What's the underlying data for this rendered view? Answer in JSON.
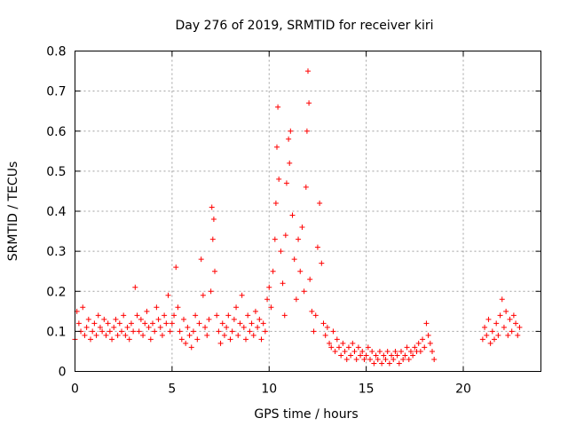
{
  "chart_data": {
    "type": "scatter",
    "title": "Day 276 of 2019, SRMTID for receiver kiri",
    "xlabel": "GPS time / hours",
    "ylabel": "SRMTID / TECUs",
    "xlim": [
      0,
      24
    ],
    "ylim": [
      0,
      0.8
    ],
    "xticks": [
      0,
      5,
      10,
      15,
      20
    ],
    "yticks": [
      0,
      0.1,
      0.2,
      0.3,
      0.4,
      0.5,
      0.6,
      0.7,
      0.8
    ],
    "xtick_labels": [
      "0",
      "5",
      "10",
      "15",
      "20"
    ],
    "ytick_labels": [
      "0",
      "0.1",
      "0.2",
      "0.3",
      "0.4",
      "0.5",
      "0.6",
      "0.7",
      "0.8"
    ],
    "grid": true,
    "marker": "+",
    "color": "#ff0000",
    "series": [
      {
        "name": "SRMTID",
        "points": [
          [
            0.0,
            0.08
          ],
          [
            0.1,
            0.15
          ],
          [
            0.2,
            0.12
          ],
          [
            0.3,
            0.1
          ],
          [
            0.4,
            0.16
          ],
          [
            0.5,
            0.09
          ],
          [
            0.6,
            0.11
          ],
          [
            0.7,
            0.13
          ],
          [
            0.8,
            0.08
          ],
          [
            0.9,
            0.1
          ],
          [
            1.0,
            0.12
          ],
          [
            1.1,
            0.09
          ],
          [
            1.2,
            0.14
          ],
          [
            1.3,
            0.11
          ],
          [
            1.4,
            0.1
          ],
          [
            1.5,
            0.13
          ],
          [
            1.6,
            0.09
          ],
          [
            1.7,
            0.12
          ],
          [
            1.8,
            0.1
          ],
          [
            1.9,
            0.08
          ],
          [
            2.0,
            0.11
          ],
          [
            2.1,
            0.13
          ],
          [
            2.2,
            0.09
          ],
          [
            2.3,
            0.12
          ],
          [
            2.4,
            0.1
          ],
          [
            2.5,
            0.14
          ],
          [
            2.6,
            0.09
          ],
          [
            2.7,
            0.11
          ],
          [
            2.8,
            0.08
          ],
          [
            2.9,
            0.12
          ],
          [
            3.0,
            0.1
          ],
          [
            3.1,
            0.21
          ],
          [
            3.2,
            0.14
          ],
          [
            3.3,
            0.1
          ],
          [
            3.4,
            0.13
          ],
          [
            3.5,
            0.09
          ],
          [
            3.6,
            0.12
          ],
          [
            3.7,
            0.15
          ],
          [
            3.8,
            0.11
          ],
          [
            3.9,
            0.08
          ],
          [
            4.0,
            0.12
          ],
          [
            4.1,
            0.1
          ],
          [
            4.2,
            0.16
          ],
          [
            4.3,
            0.13
          ],
          [
            4.4,
            0.11
          ],
          [
            4.5,
            0.09
          ],
          [
            4.6,
            0.14
          ],
          [
            4.7,
            0.12
          ],
          [
            4.8,
            0.19
          ],
          [
            4.9,
            0.1
          ],
          [
            5.0,
            0.12
          ],
          [
            5.1,
            0.14
          ],
          [
            5.2,
            0.26
          ],
          [
            5.3,
            0.16
          ],
          [
            5.4,
            0.1
          ],
          [
            5.5,
            0.08
          ],
          [
            5.6,
            0.13
          ],
          [
            5.7,
            0.07
          ],
          [
            5.8,
            0.11
          ],
          [
            5.9,
            0.09
          ],
          [
            6.0,
            0.06
          ],
          [
            6.1,
            0.1
          ],
          [
            6.2,
            0.14
          ],
          [
            6.3,
            0.08
          ],
          [
            6.4,
            0.12
          ],
          [
            6.5,
            0.28
          ],
          [
            6.6,
            0.19
          ],
          [
            6.7,
            0.11
          ],
          [
            6.8,
            0.09
          ],
          [
            6.9,
            0.13
          ],
          [
            7.0,
            0.2
          ],
          [
            7.05,
            0.41
          ],
          [
            7.1,
            0.33
          ],
          [
            7.15,
            0.38
          ],
          [
            7.2,
            0.25
          ],
          [
            7.3,
            0.14
          ],
          [
            7.4,
            0.1
          ],
          [
            7.5,
            0.07
          ],
          [
            7.6,
            0.12
          ],
          [
            7.7,
            0.09
          ],
          [
            7.8,
            0.11
          ],
          [
            7.9,
            0.14
          ],
          [
            8.0,
            0.08
          ],
          [
            8.1,
            0.1
          ],
          [
            8.2,
            0.13
          ],
          [
            8.3,
            0.16
          ],
          [
            8.4,
            0.09
          ],
          [
            8.5,
            0.12
          ],
          [
            8.6,
            0.19
          ],
          [
            8.7,
            0.11
          ],
          [
            8.8,
            0.08
          ],
          [
            8.9,
            0.14
          ],
          [
            9.0,
            0.1
          ],
          [
            9.1,
            0.12
          ],
          [
            9.2,
            0.09
          ],
          [
            9.3,
            0.15
          ],
          [
            9.4,
            0.11
          ],
          [
            9.5,
            0.13
          ],
          [
            9.6,
            0.08
          ],
          [
            9.7,
            0.12
          ],
          [
            9.8,
            0.1
          ],
          [
            9.9,
            0.18
          ],
          [
            10.0,
            0.21
          ],
          [
            10.1,
            0.16
          ],
          [
            10.2,
            0.25
          ],
          [
            10.3,
            0.33
          ],
          [
            10.35,
            0.42
          ],
          [
            10.4,
            0.56
          ],
          [
            10.45,
            0.66
          ],
          [
            10.5,
            0.48
          ],
          [
            10.6,
            0.3
          ],
          [
            10.7,
            0.22
          ],
          [
            10.8,
            0.14
          ],
          [
            10.85,
            0.34
          ],
          [
            10.9,
            0.47
          ],
          [
            11.0,
            0.58
          ],
          [
            11.05,
            0.52
          ],
          [
            11.1,
            0.6
          ],
          [
            11.2,
            0.39
          ],
          [
            11.3,
            0.28
          ],
          [
            11.4,
            0.18
          ],
          [
            11.5,
            0.33
          ],
          [
            11.6,
            0.25
          ],
          [
            11.7,
            0.36
          ],
          [
            11.8,
            0.2
          ],
          [
            11.9,
            0.46
          ],
          [
            11.95,
            0.6
          ],
          [
            12.0,
            0.75
          ],
          [
            12.05,
            0.67
          ],
          [
            12.1,
            0.23
          ],
          [
            12.2,
            0.15
          ],
          [
            12.3,
            0.1
          ],
          [
            12.4,
            0.14
          ],
          [
            12.5,
            0.31
          ],
          [
            12.6,
            0.42
          ],
          [
            12.7,
            0.27
          ],
          [
            12.8,
            0.12
          ],
          [
            12.9,
            0.09
          ],
          [
            13.0,
            0.11
          ],
          [
            13.1,
            0.07
          ],
          [
            13.2,
            0.06
          ],
          [
            13.3,
            0.1
          ],
          [
            13.4,
            0.05
          ],
          [
            13.5,
            0.08
          ],
          [
            13.6,
            0.06
          ],
          [
            13.7,
            0.04
          ],
          [
            13.8,
            0.07
          ],
          [
            13.9,
            0.05
          ],
          [
            14.0,
            0.03
          ],
          [
            14.1,
            0.06
          ],
          [
            14.2,
            0.04
          ],
          [
            14.3,
            0.07
          ],
          [
            14.4,
            0.05
          ],
          [
            14.5,
            0.03
          ],
          [
            14.6,
            0.06
          ],
          [
            14.7,
            0.04
          ],
          [
            14.8,
            0.05
          ],
          [
            14.9,
            0.03
          ],
          [
            15.0,
            0.04
          ],
          [
            15.1,
            0.06
          ],
          [
            15.2,
            0.03
          ],
          [
            15.3,
            0.05
          ],
          [
            15.4,
            0.02
          ],
          [
            15.5,
            0.04
          ],
          [
            15.6,
            0.03
          ],
          [
            15.7,
            0.05
          ],
          [
            15.8,
            0.02
          ],
          [
            15.9,
            0.04
          ],
          [
            16.0,
            0.03
          ],
          [
            16.1,
            0.05
          ],
          [
            16.2,
            0.02
          ],
          [
            16.3,
            0.04
          ],
          [
            16.4,
            0.03
          ],
          [
            16.5,
            0.05
          ],
          [
            16.6,
            0.04
          ],
          [
            16.7,
            0.02
          ],
          [
            16.8,
            0.05
          ],
          [
            16.9,
            0.03
          ],
          [
            17.0,
            0.04
          ],
          [
            17.1,
            0.06
          ],
          [
            17.2,
            0.03
          ],
          [
            17.3,
            0.05
          ],
          [
            17.4,
            0.04
          ],
          [
            17.5,
            0.06
          ],
          [
            17.6,
            0.05
          ],
          [
            17.7,
            0.07
          ],
          [
            17.8,
            0.05
          ],
          [
            17.9,
            0.08
          ],
          [
            18.0,
            0.06
          ],
          [
            18.1,
            0.12
          ],
          [
            18.2,
            0.09
          ],
          [
            18.3,
            0.07
          ],
          [
            18.4,
            0.05
          ],
          [
            18.5,
            0.03
          ],
          [
            21.0,
            0.08
          ],
          [
            21.1,
            0.11
          ],
          [
            21.2,
            0.09
          ],
          [
            21.3,
            0.13
          ],
          [
            21.4,
            0.07
          ],
          [
            21.5,
            0.1
          ],
          [
            21.6,
            0.08
          ],
          [
            21.7,
            0.12
          ],
          [
            21.8,
            0.09
          ],
          [
            21.9,
            0.14
          ],
          [
            22.0,
            0.18
          ],
          [
            22.1,
            0.11
          ],
          [
            22.2,
            0.15
          ],
          [
            22.3,
            0.09
          ],
          [
            22.4,
            0.13
          ],
          [
            22.5,
            0.1
          ],
          [
            22.6,
            0.14
          ],
          [
            22.7,
            0.12
          ],
          [
            22.8,
            0.09
          ],
          [
            22.9,
            0.11
          ]
        ]
      }
    ]
  }
}
